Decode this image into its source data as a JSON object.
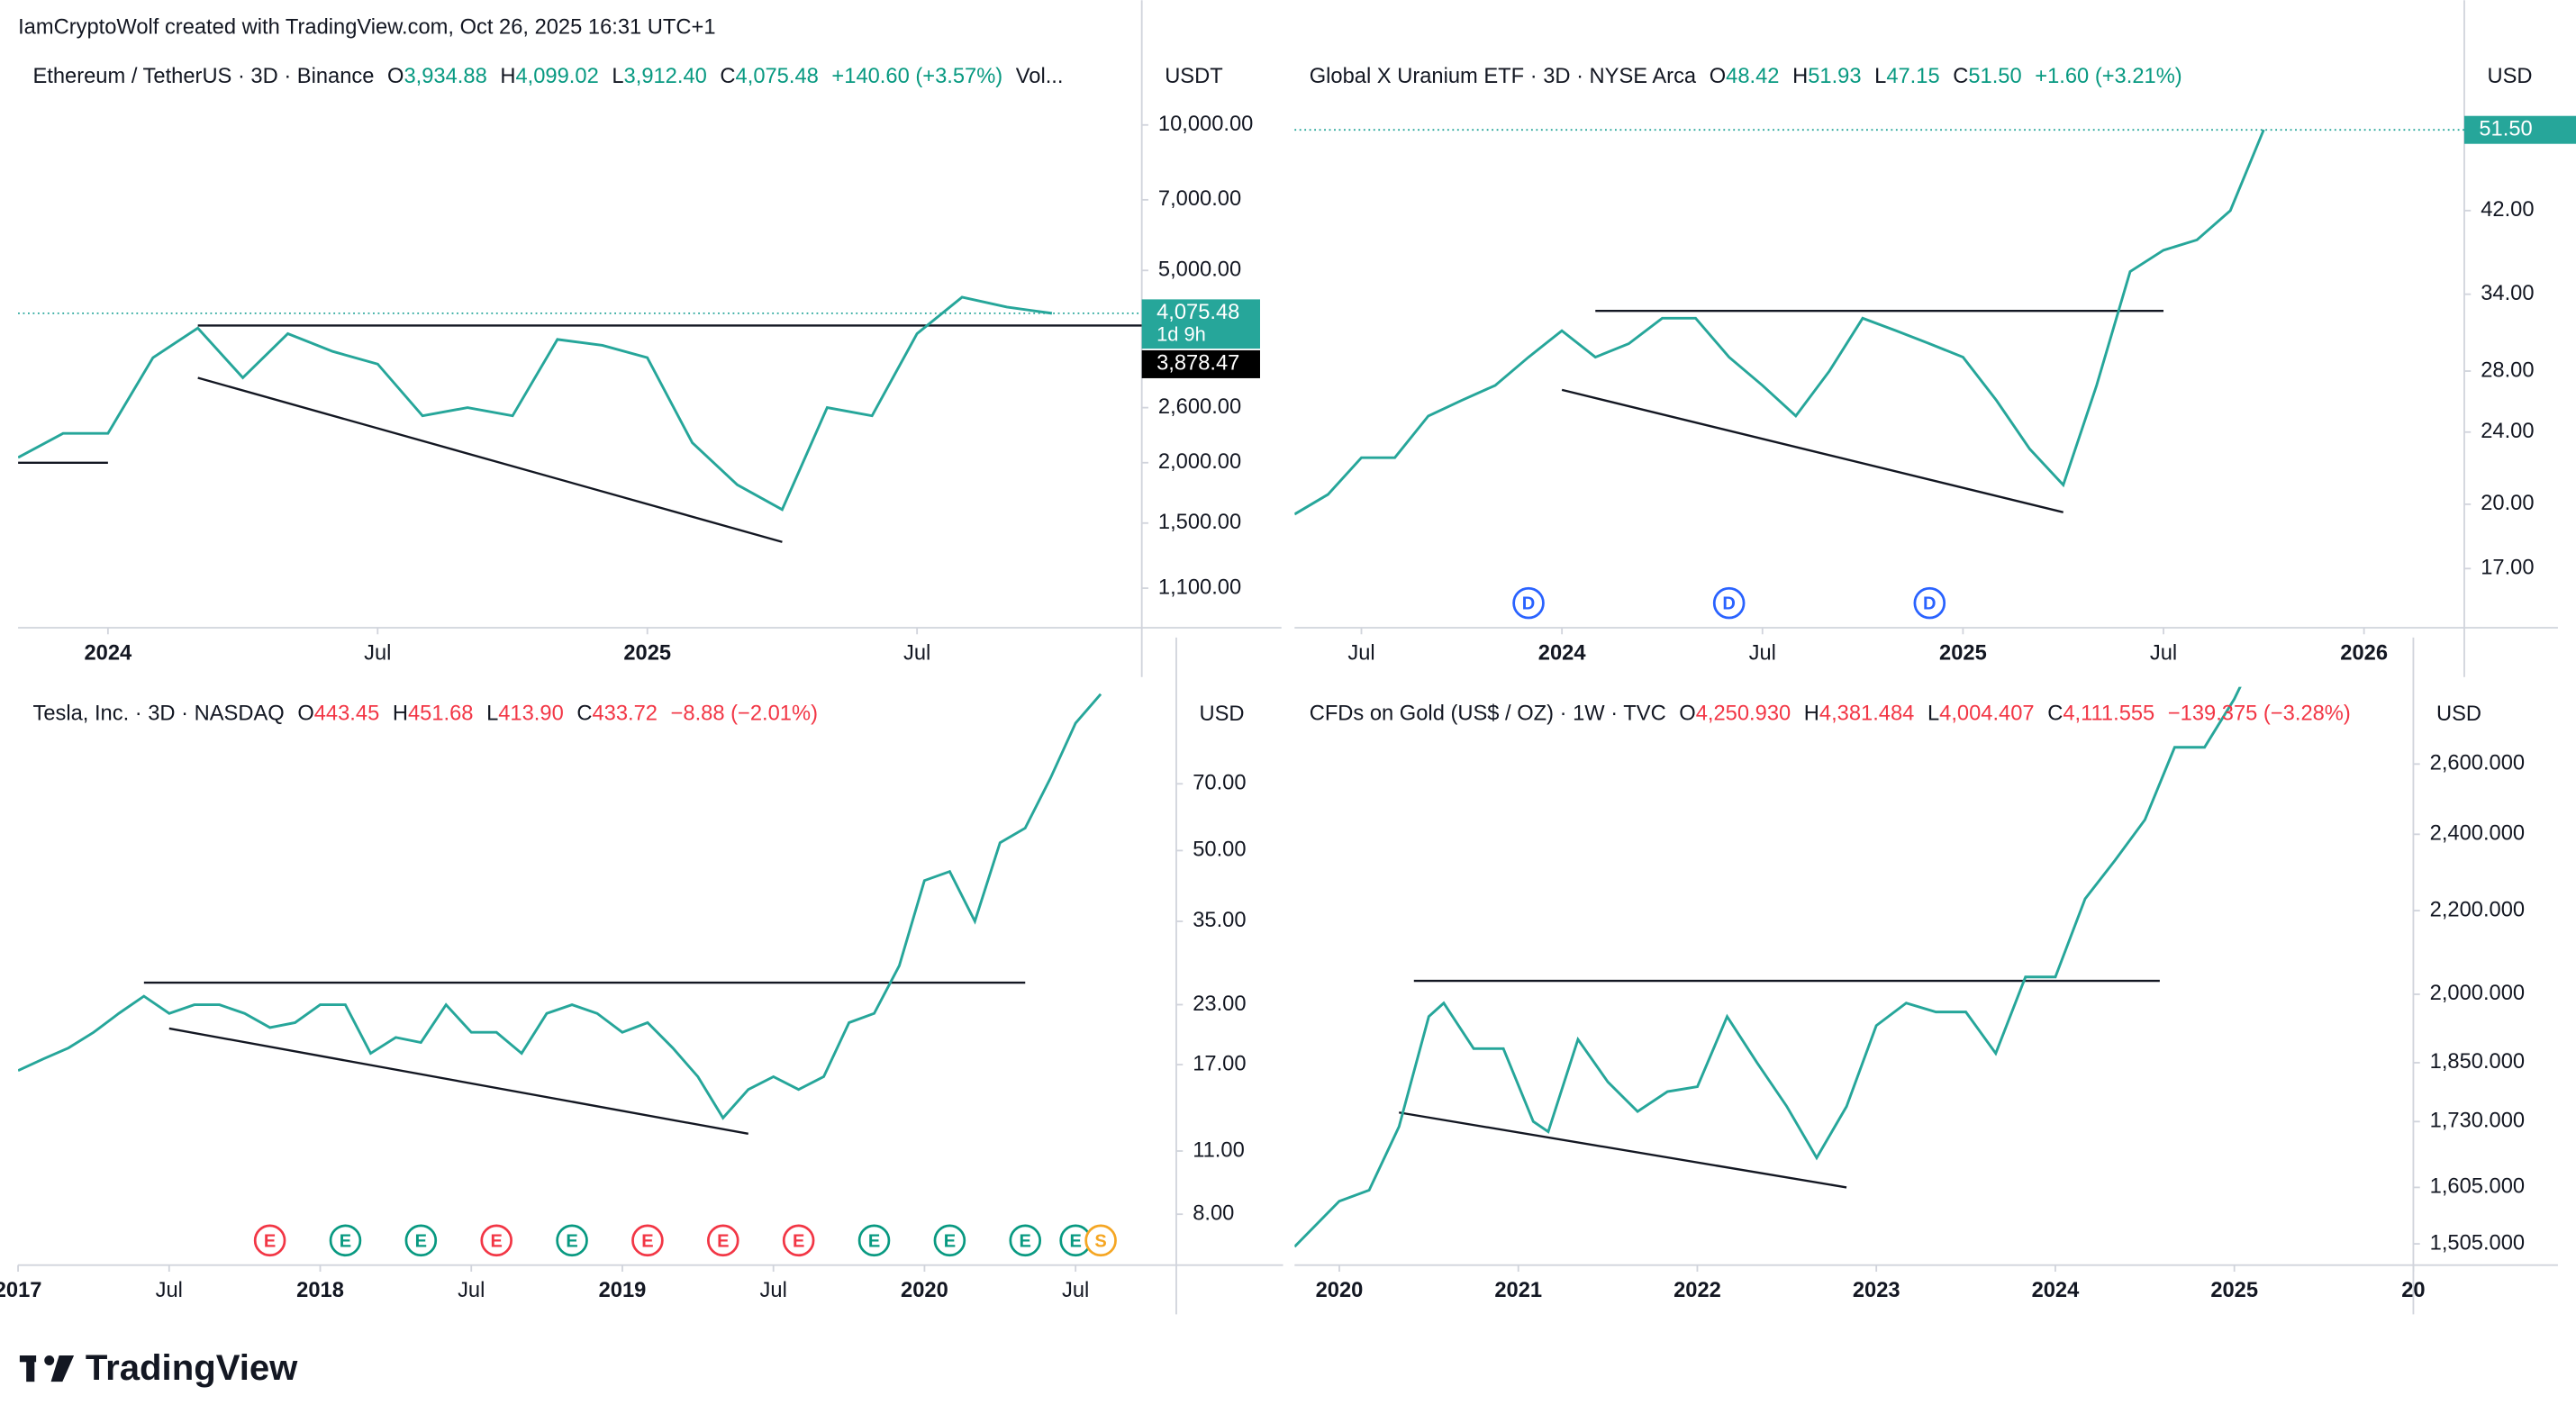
{
  "header": "IamCryptoWolf created with TradingView.com, Oct 26, 2025 16:31 UTC+1",
  "footer": "TradingView",
  "chart_data": [
    {
      "type": "line",
      "title": "Ethereum / TetherUS · 3D · Binance",
      "quote": [
        [
          "O",
          "3,934.88"
        ],
        [
          "H",
          "4,099.02"
        ],
        [
          "L",
          "3,912.40"
        ],
        [
          "C",
          "4,075.48"
        ]
      ],
      "change": "+140.60 (+3.57%)",
      "more": "Vol...",
      "quote_color": "#089981",
      "currency": "USDT",
      "log_scale": true,
      "x": [
        "2023-11",
        "2023-12",
        "2024-01",
        "2024-02",
        "2024-03",
        "2024-04",
        "2024-05",
        "2024-06",
        "2024-07",
        "2024-08",
        "2024-09",
        "2024-10",
        "2024-11",
        "2024-12",
        "2025-01",
        "2025-02",
        "2025-03",
        "2025-04",
        "2025-05",
        "2025-06",
        "2025-07",
        "2025-08",
        "2025-09",
        "2025-10"
      ],
      "series": [
        {
          "color": "#26a69a",
          "values": [
            2050,
            2300,
            2300,
            3300,
            3800,
            3000,
            3700,
            3400,
            3200,
            2500,
            2600,
            2500,
            3600,
            3500,
            3300,
            2200,
            1800,
            1600,
            2600,
            2500,
            3700,
            4400,
            4200,
            4075.48
          ]
        }
      ],
      "xlim": [
        "2023-11",
        "2025-12"
      ],
      "xticks": [
        {
          "value": "2024-01",
          "label": "2024"
        },
        {
          "value": "2024-07",
          "label": "Jul"
        },
        {
          "value": "2025-01",
          "label": "2025"
        },
        {
          "value": "2025-07",
          "label": "Jul"
        }
      ],
      "ylim": [
        911,
        14330
      ],
      "yticks": [
        {
          "value": 10000,
          "label": "10,000.00"
        },
        {
          "value": 7000,
          "label": "7,000.00"
        },
        {
          "value": 5000,
          "label": "5,000.00"
        },
        {
          "value": 2600,
          "label": "2,600.00"
        },
        {
          "value": 2000,
          "label": "2,000.00"
        },
        {
          "value": 1500,
          "label": "1,500.00"
        },
        {
          "value": 1100,
          "label": "1,100.00"
        }
      ],
      "price_labels": [
        {
          "value": 4075.48,
          "label": "4,075.48",
          "sub": "1d 9h",
          "color": "#26a69a"
        },
        {
          "value": 3878.47,
          "label": "3,878.47",
          "color": "#000000"
        }
      ],
      "trendlines": [
        {
          "x": [
            "2024-03",
            "2025-12"
          ],
          "y": [
            3845,
            3845
          ]
        },
        {
          "x": [
            "2024-03",
            "2025-04"
          ],
          "y": [
            2997,
            1371
          ]
        },
        {
          "x": [
            "2023-11",
            "2024-01"
          ],
          "y": [
            2000,
            2000
          ]
        }
      ]
    },
    {
      "type": "line",
      "title": "Global X Uranium ETF · 3D · NYSE Arca",
      "quote": [
        [
          "O",
          "48.42"
        ],
        [
          "H",
          "51.93"
        ],
        [
          "L",
          "47.15"
        ],
        [
          "C",
          "51.50"
        ]
      ],
      "change": "+1.60 (+3.21%)",
      "quote_color": "#089981",
      "currency": "USD",
      "log_scale": true,
      "x": [
        "2023-05",
        "2023-06",
        "2023-07",
        "2023-08",
        "2023-09",
        "2023-10",
        "2023-11",
        "2023-12",
        "2024-01",
        "2024-02",
        "2024-03",
        "2024-04",
        "2024-05",
        "2024-06",
        "2024-07",
        "2024-08",
        "2024-09",
        "2024-10",
        "2024-11",
        "2024-12",
        "2025-01",
        "2025-02",
        "2025-03",
        "2025-04",
        "2025-05",
        "2025-06",
        "2025-07",
        "2025-08",
        "2025-09",
        "2025-10"
      ],
      "series": [
        {
          "color": "#26a69a",
          "values": [
            19.5,
            20.5,
            22.5,
            22.5,
            25,
            26,
            27,
            29,
            31,
            29,
            30,
            32,
            32,
            29,
            27,
            25,
            28,
            32,
            31,
            30,
            29,
            26,
            23,
            21,
            27,
            36,
            38,
            39,
            42,
            51.5
          ]
        }
      ],
      "xlim": [
        "2023-05",
        "2026-04"
      ],
      "xticks": [
        {
          "value": "2023-07",
          "label": "Jul"
        },
        {
          "value": "2024-01",
          "label": "2024"
        },
        {
          "value": "2024-07",
          "label": "Jul"
        },
        {
          "value": "2025-01",
          "label": "2025"
        },
        {
          "value": "2025-07",
          "label": "Jul"
        },
        {
          "value": "2026-01",
          "label": "2026"
        }
      ],
      "ylim": [
        14.64,
        63.1
      ],
      "yticks": [
        {
          "value": 42,
          "label": "42.00"
        },
        {
          "value": 34,
          "label": "34.00"
        },
        {
          "value": 28,
          "label": "28.00"
        },
        {
          "value": 24,
          "label": "24.00"
        },
        {
          "value": 20,
          "label": "20.00"
        },
        {
          "value": 17,
          "label": "17.00"
        }
      ],
      "price_labels": [
        {
          "value": 51.5,
          "label": "51.50",
          "color": "#26a69a"
        }
      ],
      "trendlines": [
        {
          "x": [
            "2024-02",
            "2025-07"
          ],
          "y": [
            32.6,
            32.6
          ]
        },
        {
          "x": [
            "2024-01",
            "2025-04"
          ],
          "y": [
            26.7,
            19.6
          ]
        }
      ],
      "events": [
        {
          "x": "2023-12",
          "label": "D",
          "color": "#2962ff"
        },
        {
          "x": "2024-06",
          "label": "D",
          "color": "#2962ff"
        },
        {
          "x": "2024-12",
          "label": "D",
          "color": "#2962ff"
        }
      ]
    },
    {
      "type": "line",
      "title": "Tesla, Inc. · 3D · NASDAQ",
      "quote": [
        [
          "O",
          "443.45"
        ],
        [
          "H",
          "451.68"
        ],
        [
          "L",
          "413.90"
        ],
        [
          "C",
          "433.72"
        ]
      ],
      "change": "−8.88 (−2.01%)",
      "quote_color": "#f23645",
      "currency": "USD",
      "log_scale": true,
      "x": [
        "2017-01",
        "2017-02",
        "2017-03",
        "2017-04",
        "2017-05",
        "2017-06",
        "2017-07",
        "2017-08",
        "2017-09",
        "2017-10",
        "2017-11",
        "2017-12",
        "2018-01",
        "2018-02",
        "2018-03",
        "2018-04",
        "2018-05",
        "2018-06",
        "2018-07",
        "2018-08",
        "2018-09",
        "2018-10",
        "2018-11",
        "2018-12",
        "2019-01",
        "2019-02",
        "2019-03",
        "2019-04",
        "2019-05",
        "2019-06",
        "2019-07",
        "2019-08",
        "2019-09",
        "2019-10",
        "2019-11",
        "2019-12",
        "2020-01",
        "2020-02",
        "2020-03",
        "2020-04",
        "2020-05",
        "2020-06",
        "2020-07",
        "2020-08"
      ],
      "series": [
        {
          "color": "#26a69a",
          "values": [
            16.5,
            17.5,
            18.5,
            20,
            22,
            24,
            22,
            23,
            23,
            22,
            20.5,
            21,
            23,
            23,
            18,
            19.5,
            19,
            23,
            20,
            20,
            18,
            22,
            23,
            22,
            20,
            21,
            18.5,
            16,
            13,
            15,
            16,
            15,
            16,
            21,
            22,
            28,
            43,
            45,
            35,
            52,
            56,
            72,
            95,
            110
          ]
        }
      ],
      "xlim": [
        "2017-01",
        "2020-11"
      ],
      "xticks": [
        {
          "value": "2017-01",
          "label": "2017"
        },
        {
          "value": "2017-07",
          "label": "Jul"
        },
        {
          "value": "2018-01",
          "label": "2018"
        },
        {
          "value": "2018-07",
          "label": "Jul"
        },
        {
          "value": "2019-01",
          "label": "2019"
        },
        {
          "value": "2019-07",
          "label": "Jul"
        },
        {
          "value": "2020-01",
          "label": "2020"
        },
        {
          "value": "2020-07",
          "label": "Jul"
        }
      ],
      "ylim": [
        6.19,
        114.1
      ],
      "yticks": [
        {
          "value": 70,
          "label": "70.00"
        },
        {
          "value": 50,
          "label": "50.00"
        },
        {
          "value": 35,
          "label": "35.00"
        },
        {
          "value": 23,
          "label": "23.00"
        },
        {
          "value": 17,
          "label": "17.00"
        },
        {
          "value": 11,
          "label": "11.00"
        },
        {
          "value": 8,
          "label": "8.00"
        }
      ],
      "trendlines": [
        {
          "x": [
            "2017-06",
            "2020-05"
          ],
          "y": [
            25.7,
            25.7
          ]
        },
        {
          "x": [
            "2017-07",
            "2019-06"
          ],
          "y": [
            20.4,
            12
          ]
        }
      ],
      "events": [
        {
          "x": "2017-11",
          "label": "E",
          "color": "#f23645"
        },
        {
          "x": "2018-02",
          "label": "E",
          "color": "#089981"
        },
        {
          "x": "2018-05",
          "label": "E",
          "color": "#089981"
        },
        {
          "x": "2018-08",
          "label": "E",
          "color": "#f23645"
        },
        {
          "x": "2018-11",
          "label": "E",
          "color": "#089981"
        },
        {
          "x": "2019-02",
          "label": "E",
          "color": "#f23645"
        },
        {
          "x": "2019-05",
          "label": "E",
          "color": "#f23645"
        },
        {
          "x": "2019-08",
          "label": "E",
          "color": "#f23645"
        },
        {
          "x": "2019-11",
          "label": "E",
          "color": "#089981"
        },
        {
          "x": "2020-02",
          "label": "E",
          "color": "#089981"
        },
        {
          "x": "2020-05",
          "label": "E",
          "color": "#089981"
        },
        {
          "x": "2020-07",
          "label": "E",
          "color": "#089981"
        },
        {
          "x": "2020-08",
          "label": "S",
          "color": "#f5a623"
        }
      ]
    },
    {
      "type": "line",
      "title": "CFDs on Gold (US$ / OZ) · 1W · TVC",
      "quote": [
        [
          "O",
          "4,250.930"
        ],
        [
          "H",
          "4,381.484"
        ],
        [
          "L",
          "4,004.407"
        ],
        [
          "C",
          "4,111.555"
        ]
      ],
      "change": "−139.375 (−3.28%)",
      "quote_color": "#f23645",
      "currency": "USD",
      "log_scale": true,
      "x": [
        "2019-10",
        "2020-01",
        "2020-03",
        "2020-05",
        "2020-07",
        "2020-08",
        "2020-10",
        "2020-12",
        "2021-02",
        "2021-03",
        "2021-05",
        "2021-07",
        "2021-09",
        "2021-11",
        "2022-01",
        "2022-03",
        "2022-05",
        "2022-07",
        "2022-09",
        "2022-11",
        "2023-01",
        "2023-03",
        "2023-05",
        "2023-07",
        "2023-09",
        "2023-11",
        "2024-01",
        "2024-03",
        "2024-05",
        "2024-07",
        "2024-09",
        "2024-11",
        "2025-01",
        "2025-02"
      ],
      "series": [
        {
          "color": "#26a69a",
          "values": [
            1500,
            1580,
            1600,
            1720,
            1950,
            1980,
            1880,
            1880,
            1730,
            1710,
            1900,
            1810,
            1750,
            1790,
            1800,
            1950,
            1850,
            1760,
            1660,
            1760,
            1930,
            1980,
            1960,
            1960,
            1870,
            2040,
            2040,
            2230,
            2330,
            2440,
            2650,
            2650,
            2800,
            2900
          ]
        }
      ],
      "xlim": [
        "2019-10",
        "2026-01"
      ],
      "xticks": [
        {
          "value": "2020-01",
          "label": "2020"
        },
        {
          "value": "2021-01",
          "label": "2021"
        },
        {
          "value": "2022-01",
          "label": "2022"
        },
        {
          "value": "2023-01",
          "label": "2023"
        },
        {
          "value": "2024-01",
          "label": "2024"
        },
        {
          "value": "2025-01",
          "label": "2025"
        },
        {
          "value": "2026-01",
          "label": "20"
        }
      ],
      "ylim": [
        1469,
        2839
      ],
      "yticks": [
        {
          "value": 2600,
          "label": "2,600.000"
        },
        {
          "value": 2400,
          "label": "2,400.000"
        },
        {
          "value": 2200,
          "label": "2,200.000"
        },
        {
          "value": 2000,
          "label": "2,000.000"
        },
        {
          "value": 1850,
          "label": "1,850.000"
        },
        {
          "value": 1730,
          "label": "1,730.000"
        },
        {
          "value": 1605,
          "label": "1,605.000"
        },
        {
          "value": 1505,
          "label": "1,505.000"
        }
      ],
      "trendlines": [
        {
          "x": [
            "2020-06",
            "2024-08"
          ],
          "y": [
            2031,
            2031
          ]
        },
        {
          "x": [
            "2020-05",
            "2022-11"
          ],
          "y": [
            1748,
            1605
          ]
        }
      ]
    }
  ]
}
